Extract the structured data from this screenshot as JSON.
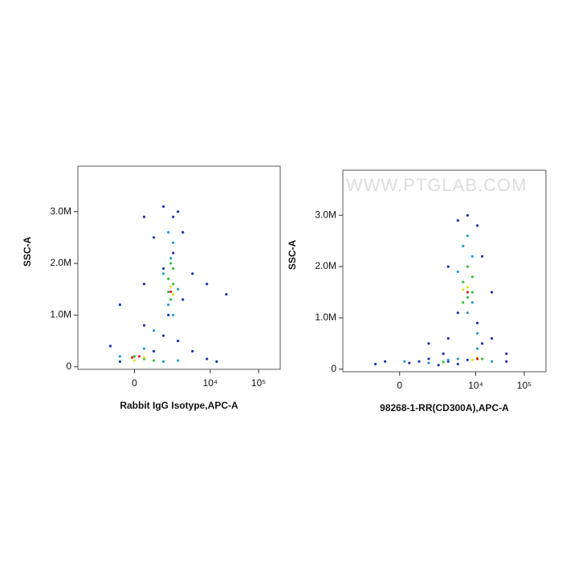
{
  "chart_data": [
    {
      "type": "scatter",
      "x_label": "Rabbit IgG Isotype,APC-A",
      "y_label": "SSC-A",
      "xscale": "biexponential",
      "xlim": [
        -4000,
        280000
      ],
      "ylim": [
        -50000,
        3880000
      ],
      "xticks": [
        0,
        {
          "value": 10000,
          "label": "10⁴"
        },
        {
          "value": 100000,
          "label": "10⁵"
        }
      ],
      "yticks": [
        0,
        {
          "value": 1000000,
          "label": "1.0M"
        },
        {
          "value": 2000000,
          "label": "2.0M"
        },
        {
          "value": 3000000,
          "label": "3.0M"
        }
      ],
      "series": [
        {
          "color": "#2030b0",
          "x": [
            258,
            1010,
            2120,
            574,
            2690,
            1670,
            4280,
            -406,
            8520,
            258,
            1010,
            2120,
            -770,
            574,
            4280,
            1310,
            2690,
            -406,
            8520,
            13600,
            1670,
            1010,
            258,
            21500
          ],
          "y": [
            2900000,
            3100000,
            3000000,
            2500000,
            2600000,
            2200000,
            1800000,
            1200000,
            1600000,
            800000,
            600000,
            500000,
            400000,
            300000,
            300000,
            1000000,
            1300000,
            100000,
            150000,
            100000,
            2900000,
            1900000,
            1600000,
            1400000
          ]
        },
        {
          "color": "#20a0c8",
          "x": [
            1310,
            1670,
            1480,
            1010,
            2120,
            1310,
            1670,
            574,
            258,
            -406,
            1010,
            2120
          ],
          "y": [
            2600000,
            2400000,
            2100000,
            1800000,
            1500000,
            1200000,
            1000000,
            700000,
            350000,
            200000,
            100000,
            120000
          ]
        },
        {
          "color": "#30c040",
          "x": [
            1480,
            1310,
            1670,
            1480,
            1670,
            1310,
            258,
            0,
            574
          ],
          "y": [
            2000000,
            1700000,
            1600000,
            1300000,
            1900000,
            1450000,
            150000,
            200000,
            120000
          ]
        },
        {
          "color": "#e0e020",
          "x": [
            1480,
            1670,
            0,
            258
          ],
          "y": [
            1550000,
            1400000,
            120000,
            180000
          ]
        },
        {
          "color": "#e02020",
          "x": [
            1480,
            -60,
            126
          ],
          "y": [
            1450000,
            180000,
            200000
          ]
        }
      ]
    },
    {
      "type": "scatter",
      "x_label": "98268-1-RR(CD300A),APC-A",
      "y_label": "SSC-A",
      "xscale": "biexponential",
      "watermark": "WWW.PTGLAB.COM",
      "xlim": [
        -4000,
        280000
      ],
      "ylim": [
        -50000,
        3880000
      ],
      "xticks": [
        0,
        {
          "value": 10000,
          "label": "10⁴"
        },
        {
          "value": 100000,
          "label": "10⁵"
        }
      ],
      "yticks": [
        0,
        {
          "value": 1000000,
          "label": "1.0M"
        },
        {
          "value": 2000000,
          "label": "2.0M"
        },
        {
          "value": 3000000,
          "label": "3.0M"
        }
      ],
      "series": [
        {
          "color": "#2030b0",
          "x": [
            6790,
            4280,
            10800,
            2690,
            13600,
            4280,
            21500,
            -770,
            -406,
            258,
            1010,
            2120,
            1010,
            2690,
            43000,
            21500,
            13600,
            10800,
            574,
            1670,
            4280,
            6790,
            2690,
            43000
          ],
          "y": [
            3000000,
            2900000,
            2800000,
            2000000,
            2200000,
            1100000,
            1500000,
            100000,
            150000,
            120000,
            200000,
            300000,
            500000,
            600000,
            300000,
            600000,
            500000,
            900000,
            150000,
            80000,
            100000,
            180000,
            150000,
            150000
          ]
        },
        {
          "color": "#20a0c8",
          "x": [
            6790,
            5500,
            8520,
            4280,
            8520,
            6790,
            10800,
            10800,
            126,
            1010,
            2690,
            21500,
            4280
          ],
          "y": [
            2600000,
            2400000,
            2200000,
            1900000,
            1300000,
            1100000,
            700000,
            400000,
            150000,
            120000,
            180000,
            150000,
            200000
          ]
        },
        {
          "color": "#30c040",
          "x": [
            6790,
            5500,
            8520,
            6790,
            5500,
            8520,
            13600,
            2120
          ],
          "y": [
            2000000,
            1700000,
            1800000,
            1400000,
            1300000,
            1500000,
            200000,
            140000
          ]
        },
        {
          "color": "#e0e020",
          "x": [
            6790,
            5500,
            10800,
            8520
          ],
          "y": [
            1600000,
            1550000,
            220000,
            180000
          ]
        },
        {
          "color": "#e02020",
          "x": [
            6790,
            10800
          ],
          "y": [
            1500000,
            200000
          ]
        }
      ]
    }
  ]
}
